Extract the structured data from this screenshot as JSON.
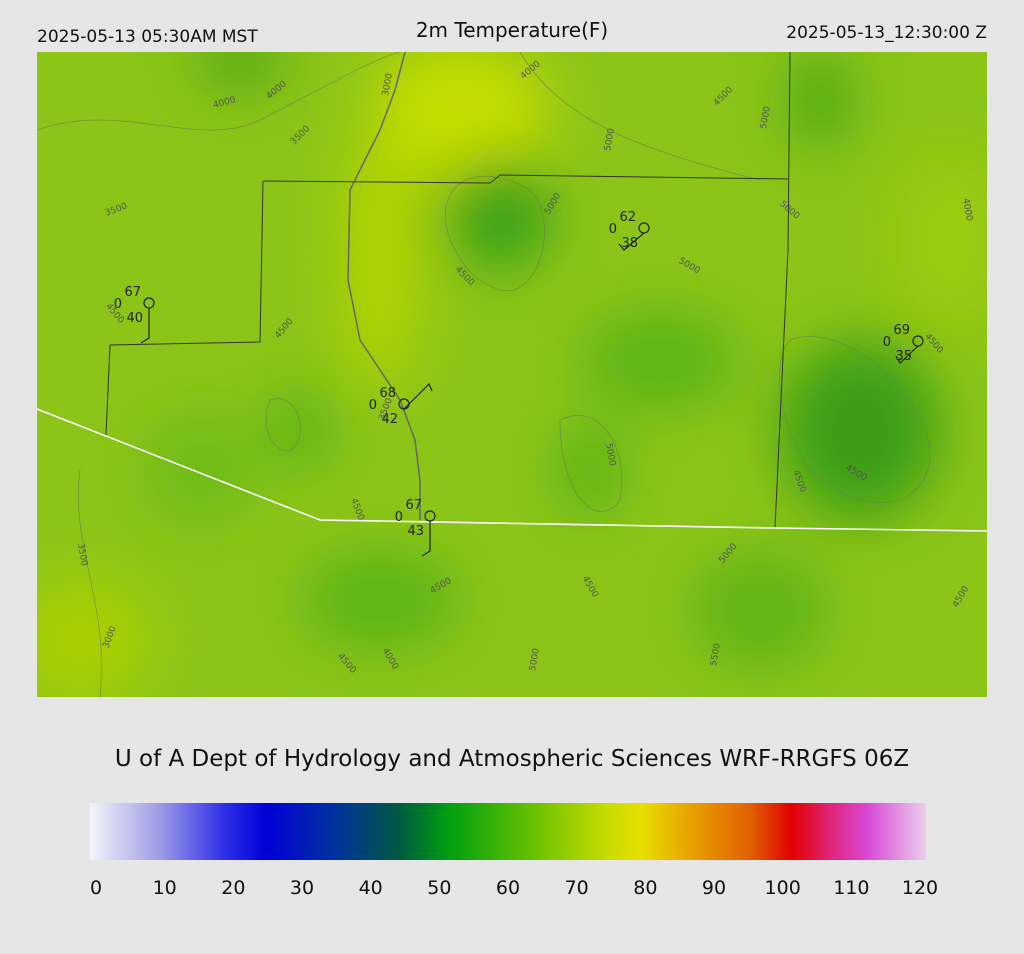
{
  "header": {
    "local_time": "2025-05-13 05:30AM MST",
    "title": "2m Temperature(F)",
    "utc_time": "2025-05-13_12:30:00 Z"
  },
  "stations": [
    {
      "temperature": 67,
      "dewpoint": 40,
      "cloud": 0
    },
    {
      "temperature": 62,
      "dewpoint": 38,
      "cloud": 0
    },
    {
      "temperature": 69,
      "dewpoint": 35,
      "cloud": 0
    },
    {
      "temperature": 68,
      "dewpoint": 42,
      "cloud": 0
    },
    {
      "temperature": 67,
      "dewpoint": 43,
      "cloud": 0
    }
  ],
  "contour_labels": [
    "4000",
    "4000",
    "3000",
    "4000",
    "3500",
    "4500",
    "5000",
    "5000",
    "3500",
    "5000",
    "5000",
    "4000",
    "4500",
    "5000",
    "4500",
    "4500",
    "4500",
    "3500",
    "5000",
    "4500",
    "4500",
    "4500",
    "3500",
    "5000",
    "4500",
    "4500",
    "4500",
    "3000",
    "4000",
    "4500",
    "5000",
    "5500"
  ],
  "footer": {
    "credit": "U of A Dept of Hydrology and Atmospheric Sciences WRF-RRGFS 06Z"
  },
  "colorbar": {
    "ticks": [
      0,
      10,
      20,
      30,
      40,
      50,
      60,
      70,
      80,
      90,
      100,
      110,
      120
    ]
  }
}
